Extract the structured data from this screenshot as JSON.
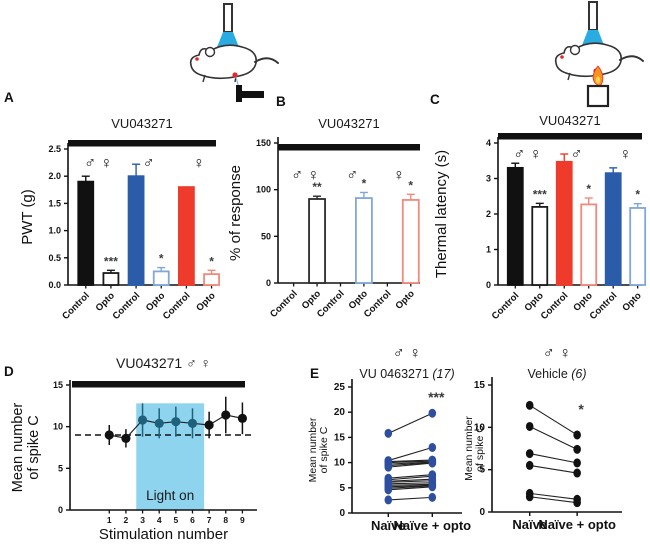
{
  "panel_labels": {
    "A": "A",
    "B": "B",
    "C": "C",
    "D": "D",
    "E": "E"
  },
  "symbols": {
    "male": "♂",
    "female": "♀",
    "male_female": "♂ ♀"
  },
  "colors": {
    "black": "#111111",
    "blue": "#2a5caa",
    "blue_light": "#7fa7dc",
    "red": "#ee3b2b",
    "red_light": "#f2897b",
    "light_region": "#8ed4ee",
    "teal_point": "#1e617a",
    "paired_blue": "#2d4f9e"
  },
  "chart_data": [
    {
      "id": "A",
      "type": "bar",
      "title": "VU043271",
      "ylabel": "PWT (g)",
      "ylim": [
        0,
        2.5
      ],
      "yticks": [
        "0.0",
        "0.5",
        "1.0",
        "1.5",
        "2.0",
        "2.5"
      ],
      "treatment_bar": true,
      "bars": [
        {
          "label": "Control",
          "value": 1.9,
          "err": 0.1,
          "fill": "#111111",
          "stroke": "#111111",
          "err_color": "#111111",
          "sig": ""
        },
        {
          "label": "Opto",
          "value": 0.22,
          "err": 0.05,
          "fill": "#ffffff",
          "stroke": "#1a1a1a",
          "err_color": "#1a1a1a",
          "sig": "***"
        },
        {
          "label": "Control",
          "value": 2.0,
          "err": 0.22,
          "fill": "#2a5caa",
          "stroke": "#2a5caa",
          "err_color": "#2a5caa",
          "sig": ""
        },
        {
          "label": "Opto",
          "value": 0.25,
          "err": 0.07,
          "fill": "#ffffff",
          "stroke": "#7fa7dc",
          "err_color": "#7fa7dc",
          "sig": "*"
        },
        {
          "label": "Control",
          "value": 1.8,
          "err": 0,
          "fill": "#ee3b2b",
          "stroke": "#ee3b2b",
          "err_color": "#ee3b2b",
          "sig": ""
        },
        {
          "label": "Opto",
          "value": 0.2,
          "err": 0.07,
          "fill": "#ffffff",
          "stroke": "#f2897b",
          "err_color": "#f2897b",
          "sig": "*"
        }
      ],
      "sex_groups": [
        {
          "symbol": "♂ ♀",
          "pair": 0
        },
        {
          "symbol": "♂",
          "pair": 1
        },
        {
          "symbol": "♀",
          "pair": 2
        }
      ]
    },
    {
      "id": "B",
      "type": "bar",
      "title": "VU043271",
      "ylabel": "% of response",
      "ylim": [
        0,
        150
      ],
      "yticks": [
        "0",
        "50",
        "100",
        "150"
      ],
      "treatment_bar": true,
      "bars": [
        {
          "label": "Control",
          "value": 0,
          "err": 0,
          "fill": "#ffffff",
          "stroke": "#1a1a1a",
          "err_color": "#1a1a1a",
          "sig": ""
        },
        {
          "label": "Opto",
          "value": 90,
          "err": 3,
          "fill": "#ffffff",
          "stroke": "#2b2b2b",
          "err_color": "#2b2b2b",
          "sig": "**"
        },
        {
          "label": "Control",
          "value": 0,
          "err": 0,
          "fill": "#ffffff",
          "stroke": "#2a5caa",
          "err_color": "#2a5caa",
          "sig": ""
        },
        {
          "label": "Opto",
          "value": 91,
          "err": 6,
          "fill": "#ffffff",
          "stroke": "#7fa7dc",
          "err_color": "#7fa7dc",
          "sig": "*"
        },
        {
          "label": "Control",
          "value": 0,
          "err": 0,
          "fill": "#ffffff",
          "stroke": "#ee3b2b",
          "err_color": "#ee3b2b",
          "sig": ""
        },
        {
          "label": "Opto",
          "value": 89,
          "err": 6,
          "fill": "#ffffff",
          "stroke": "#f2897b",
          "err_color": "#f2897b",
          "sig": "*"
        }
      ],
      "sex_groups": [
        {
          "symbol": "♂ ♀",
          "pair": 0
        },
        {
          "symbol": "♂",
          "pair": 1
        },
        {
          "symbol": "♀",
          "pair": 2
        }
      ]
    },
    {
      "id": "C",
      "type": "bar",
      "title": "VU043271",
      "ylabel": "Thermal latency (s)",
      "ylim": [
        0,
        4
      ],
      "yticks": [
        "0",
        "1",
        "2",
        "3",
        "4"
      ],
      "treatment_bar": true,
      "bars": [
        {
          "label": "Control",
          "value": 3.3,
          "err": 0.13,
          "fill": "#111111",
          "stroke": "#111111",
          "err_color": "#111111",
          "sig": ""
        },
        {
          "label": "Opto",
          "value": 2.2,
          "err": 0.1,
          "fill": "#ffffff",
          "stroke": "#1a1a1a",
          "err_color": "#1a1a1a",
          "sig": "***"
        },
        {
          "label": "Control",
          "value": 3.47,
          "err": 0.22,
          "fill": "#ee3b2b",
          "stroke": "#ee3b2b",
          "err_color": "#ee3b2b",
          "sig": ""
        },
        {
          "label": "Opto",
          "value": 2.27,
          "err": 0.18,
          "fill": "#ffffff",
          "stroke": "#f2897b",
          "err_color": "#f2897b",
          "sig": "*"
        },
        {
          "label": "Control",
          "value": 3.15,
          "err": 0.15,
          "fill": "#2a5caa",
          "stroke": "#2a5caa",
          "err_color": "#2a5caa",
          "sig": ""
        },
        {
          "label": "Opto",
          "value": 2.17,
          "err": 0.12,
          "fill": "#ffffff",
          "stroke": "#7fa7dc",
          "err_color": "#7fa7dc",
          "sig": "*"
        }
      ],
      "sex_groups": [
        {
          "symbol": "♂ ♀",
          "pair": 0
        },
        {
          "symbol": "♂",
          "pair": 1
        },
        {
          "symbol": "♀",
          "pair": 2
        }
      ]
    },
    {
      "id": "D",
      "type": "line",
      "title": "VU043271 ♂ ♀",
      "ylabel_lines": [
        "Mean number",
        "of spike C"
      ],
      "xlabel": "Stimulation number",
      "ylim": [
        0,
        15
      ],
      "yticks": [
        0,
        5,
        10,
        15
      ],
      "x": [
        1,
        2,
        3,
        4,
        5,
        6,
        7,
        8,
        9
      ],
      "values": [
        9.0,
        8.6,
        10.8,
        10.4,
        10.6,
        10.4,
        10.2,
        11.4,
        11.0
      ],
      "errors": [
        1.2,
        1.1,
        2.0,
        1.8,
        1.8,
        1.8,
        1.6,
        2.2,
        1.9
      ],
      "in_light": [
        false,
        false,
        true,
        true,
        true,
        true,
        false,
        false,
        false
      ],
      "baseline_dash": 9,
      "light_region": {
        "from": 2.62,
        "to": 6.7,
        "top": 12.8,
        "label": "Light on"
      },
      "treatment_bar": true
    },
    {
      "id": "E1",
      "type": "paired",
      "sex_header": "♂ ♀",
      "title": "VU 0463271",
      "title_n": "(17)",
      "ylabel_lines": [
        "Mean number",
        "of spike C"
      ],
      "ylim": [
        0,
        25
      ],
      "yticks": [
        0,
        5,
        10,
        15,
        20,
        25
      ],
      "categories": [
        "Naïve",
        "Naïve + opto"
      ],
      "sig": "***",
      "dot_color": "#2d4f9e",
      "pairs": [
        [
          15.8,
          19.8
        ],
        [
          10.4,
          13.0
        ],
        [
          10.2,
          10.5
        ],
        [
          10.0,
          10.3
        ],
        [
          9.7,
          10.1
        ],
        [
          9.4,
          10.0
        ],
        [
          9.1,
          9.9
        ],
        [
          6.9,
          7.6
        ],
        [
          6.6,
          7.3
        ],
        [
          6.3,
          6.7
        ],
        [
          6.1,
          6.4
        ],
        [
          5.8,
          6.0
        ],
        [
          5.5,
          5.7
        ],
        [
          5.2,
          5.5
        ],
        [
          4.9,
          5.4
        ],
        [
          4.6,
          5.2
        ],
        [
          2.6,
          3.1
        ]
      ]
    },
    {
      "id": "E2",
      "type": "paired",
      "sex_header": "♂ ♀",
      "title": "Vehicle",
      "title_n": "(6)",
      "ylabel_lines": [
        "Mean number",
        "of spike C"
      ],
      "ylim": [
        0,
        15
      ],
      "yticks": [
        0,
        5,
        10,
        15
      ],
      "categories": [
        "Naïve",
        "Naïve + opto"
      ],
      "sig": "*",
      "dot_color": "#111111",
      "pairs": [
        [
          12.6,
          9.1
        ],
        [
          10.1,
          7.4
        ],
        [
          6.9,
          5.8
        ],
        [
          5.5,
          4.6
        ],
        [
          2.2,
          1.5
        ],
        [
          1.8,
          1.1
        ]
      ]
    }
  ]
}
